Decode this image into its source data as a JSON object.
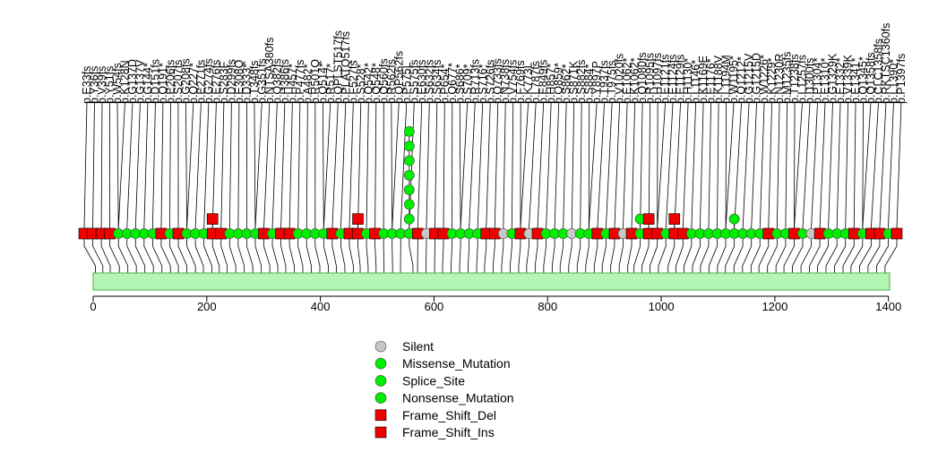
{
  "chart_data": {
    "type": "lollipop",
    "protein_length": 1402,
    "x_axis": {
      "ticks": [
        0,
        200,
        400,
        600,
        800,
        1000,
        1200,
        1400
      ]
    },
    "colors": {
      "Silent": "#c8c8c8",
      "Missense_Mutation": "#00ee00",
      "Splice_Site": "#00ee00",
      "Nonsense_Mutation": "#00ee00",
      "Frame_Shift_Del": "#ee0000",
      "Frame_Shift_Ins": "#ee0000",
      "domain": "#b3f5b3",
      "domain_border": "#4cae4c"
    },
    "legend": [
      {
        "label": "Silent",
        "shape": "circle",
        "class": "Silent"
      },
      {
        "label": "Missense_Mutation",
        "shape": "circle",
        "class": "Missense_Mutation"
      },
      {
        "label": "Splice_Site",
        "shape": "circle",
        "class": "Splice_Site"
      },
      {
        "label": "Nonsense_Mutation",
        "shape": "circle",
        "class": "Nonsense_Mutation"
      },
      {
        "label": "Frame_Shift_Del",
        "shape": "square",
        "class": "Frame_Shift_Del"
      },
      {
        "label": "Frame_Shift_Ins",
        "shape": "square",
        "class": "Frame_Shift_Ins"
      }
    ],
    "mutation_labels": [
      "p.E33fs",
      "p.Y36fs",
      "p.V39fs",
      "p.Y51fs",
      "p.W54fs",
      "p.K128N",
      "p.G137D",
      "p.G137V",
      "p.G144*",
      "p.D151fs",
      "p.Q191*",
      "p.E206fs",
      "p.S207fs",
      "p.G208fs",
      "p.Q227*",
      "p.E271fs",
      "p.G274fs",
      "p.E276fs",
      "p.S283F",
      "p.D299fs",
      "p.E308Q",
      "p.D333*",
      "p.T348fs",
      "p.G351fs",
      "p.NTSA380fs",
      "p.Q382fs",
      "p.H386fs",
      "p.H457*",
      "p.P477fs",
      "p.A482*",
      "p.R501Q",
      "p.Q514*",
      "p.R517*",
      "p.QPLST517fs",
      "p.PLATQ517fs",
      "p.F527fs",
      "p.S528*",
      "p.Q542*",
      "p.Q548*",
      "p.Q560fs",
      "p.R562fs",
      "p.QP562fs",
      "p.P575L",
      "p.S575fs",
      "p.E630fs",
      "p.S632fs",
      "p.S634fs",
      "p.P654*",
      "p.Q677*",
      "p.S686*",
      "p.S709*",
      "p.R713fs",
      "p.S716*",
      "p.S726fs",
      "p.Q733fs",
      "p.N738fs",
      "p.V754fs",
      "p.F769fs",
      "p.K773L",
      "p.L787fs",
      "p.E849fs",
      "p.H857*",
      "p.Q859*",
      "p.S862*",
      "p.S871K",
      "p.S882fs",
      "p.S884*",
      "p.Y897P",
      "p.T937fs",
      "p.T975fs",
      "p.V1020fs",
      "p.E1062*",
      "p.K1062*",
      "p.Q1080fs",
      "p.R1095fs",
      "p.H1097fs",
      "p.E1121fs",
      "p.E1124fs",
      "p.E1129fs",
      "p.H1130*",
      "p.L1146*",
      "p.K1169E",
      "p.E1176*",
      "p.K1188V",
      "p.L1194M",
      "p.W1195*",
      "p.Q1212*",
      "p.G1215V",
      "p.G1215D",
      "p.W1226*",
      "p.K1229*",
      "p.N1230R",
      "p.M1235fs",
      "p.T1238fs",
      "p.L1257fs",
      "p.I1300fs",
      "p.P1304*",
      "p.E1310*",
      "p.G1329K",
      "p.E1332*",
      "p.V1339K",
      "p.E1341*",
      "p.Q1345*",
      "p.Q1358fs",
      "p.CLC1358fs",
      "p.RKTSC1360fs",
      "p.L1390*",
      "p.P1397fs"
    ],
    "mutations": [
      {
        "pos": 4,
        "type": "Frame_Shift_Del",
        "count": 1
      },
      {
        "pos": 17,
        "type": "Frame_Shift_Del",
        "count": 1
      },
      {
        "pos": 30,
        "type": "Frame_Shift_Del",
        "count": 1
      },
      {
        "pos": 46,
        "type": "Frame_Shift_Del",
        "count": 1
      },
      {
        "pos": 61,
        "type": "Missense_Mutation",
        "count": 1
      },
      {
        "pos": 76,
        "type": "Missense_Mutation",
        "count": 1
      },
      {
        "pos": 91,
        "type": "Missense_Mutation",
        "count": 1
      },
      {
        "pos": 106,
        "type": "Missense_Mutation",
        "count": 1
      },
      {
        "pos": 121,
        "type": "Missense_Mutation",
        "count": 1
      },
      {
        "pos": 136,
        "type": "Frame_Shift_Del",
        "count": 1
      },
      {
        "pos": 150,
        "type": "Missense_Mutation",
        "count": 1
      },
      {
        "pos": 165,
        "type": "Frame_Shift_Del",
        "count": 1
      },
      {
        "pos": 180,
        "type": "Missense_Mutation",
        "count": 1
      },
      {
        "pos": 194,
        "type": "Missense_Mutation",
        "count": 1
      },
      {
        "pos": 209,
        "type": "Missense_Mutation",
        "count": 1
      },
      {
        "pos": 222,
        "type": "Frame_Shift_Del",
        "count": 2
      },
      {
        "pos": 236,
        "type": "Frame_Shift_Del",
        "count": 1
      },
      {
        "pos": 251,
        "type": "Missense_Mutation",
        "count": 1
      },
      {
        "pos": 266,
        "type": "Missense_Mutation",
        "count": 1
      },
      {
        "pos": 281,
        "type": "Missense_Mutation",
        "count": 1
      },
      {
        "pos": 296,
        "type": "Missense_Mutation",
        "count": 1
      },
      {
        "pos": 311,
        "type": "Frame_Shift_Del",
        "count": 1
      },
      {
        "pos": 325,
        "type": "Missense_Mutation",
        "count": 1
      },
      {
        "pos": 339,
        "type": "Frame_Shift_Del",
        "count": 1
      },
      {
        "pos": 354,
        "type": "Frame_Shift_Del",
        "count": 1
      },
      {
        "pos": 369,
        "type": "Missense_Mutation",
        "count": 1
      },
      {
        "pos": 384,
        "type": "Missense_Mutation",
        "count": 1
      },
      {
        "pos": 399,
        "type": "Missense_Mutation",
        "count": 1
      },
      {
        "pos": 414,
        "type": "Missense_Mutation",
        "count": 1
      },
      {
        "pos": 428,
        "type": "Frame_Shift_Del",
        "count": 1
      },
      {
        "pos": 443,
        "type": "Missense_Mutation",
        "count": 1
      },
      {
        "pos": 458,
        "type": "Frame_Shift_Del",
        "count": 1
      },
      {
        "pos": 470,
        "type": "Frame_Shift_Del",
        "count": 2
      },
      {
        "pos": 484,
        "type": "Missense_Mutation",
        "count": 1
      },
      {
        "pos": 498,
        "type": "Frame_Shift_Del",
        "count": 1
      },
      {
        "pos": 512,
        "type": "Missense_Mutation",
        "count": 1
      },
      {
        "pos": 527,
        "type": "Missense_Mutation",
        "count": 1
      },
      {
        "pos": 541,
        "type": "Missense_Mutation",
        "count": 1
      },
      {
        "pos": 563,
        "type": "Missense_Mutation",
        "count": 8
      },
      {
        "pos": 571,
        "type": "Frame_Shift_Del",
        "count": 1
      },
      {
        "pos": 586,
        "type": "Silent",
        "count": 1
      },
      {
        "pos": 601,
        "type": "Frame_Shift_Del",
        "count": 1
      },
      {
        "pos": 615,
        "type": "Frame_Shift_Del",
        "count": 1
      },
      {
        "pos": 630,
        "type": "Missense_Mutation",
        "count": 1
      },
      {
        "pos": 645,
        "type": "Missense_Mutation",
        "count": 1
      },
      {
        "pos": 660,
        "type": "Missense_Mutation",
        "count": 1
      },
      {
        "pos": 675,
        "type": "Missense_Mutation",
        "count": 1
      },
      {
        "pos": 689,
        "type": "Frame_Shift_Del",
        "count": 1
      },
      {
        "pos": 704,
        "type": "Frame_Shift_Del",
        "count": 1
      },
      {
        "pos": 719,
        "type": "Silent",
        "count": 1
      },
      {
        "pos": 734,
        "type": "Missense_Mutation",
        "count": 1
      },
      {
        "pos": 749,
        "type": "Frame_Shift_Del",
        "count": 1
      },
      {
        "pos": 763,
        "type": "Silent",
        "count": 1
      },
      {
        "pos": 778,
        "type": "Frame_Shift_Del",
        "count": 1
      },
      {
        "pos": 793,
        "type": "Missense_Mutation",
        "count": 1
      },
      {
        "pos": 808,
        "type": "Missense_Mutation",
        "count": 1
      },
      {
        "pos": 822,
        "type": "Missense_Mutation",
        "count": 1
      },
      {
        "pos": 837,
        "type": "Silent",
        "count": 1
      },
      {
        "pos": 852,
        "type": "Missense_Mutation",
        "count": 1
      },
      {
        "pos": 867,
        "type": "Missense_Mutation",
        "count": 1
      },
      {
        "pos": 882,
        "type": "Frame_Shift_Del",
        "count": 1
      },
      {
        "pos": 896,
        "type": "Missense_Mutation",
        "count": 1
      },
      {
        "pos": 911,
        "type": "Frame_Shift_Del",
        "count": 1
      },
      {
        "pos": 926,
        "type": "Silent",
        "count": 1
      },
      {
        "pos": 941,
        "type": "Frame_Shift_Del",
        "count": 1
      },
      {
        "pos": 952,
        "type": "Missense_Mutation",
        "count": 2
      },
      {
        "pos": 966,
        "type": "Frame_Shift_Del",
        "count": 2
      },
      {
        "pos": 980,
        "type": "Frame_Shift_Del",
        "count": 1
      },
      {
        "pos": 995,
        "type": "Missense_Mutation",
        "count": 1
      },
      {
        "pos": 1012,
        "type": "Frame_Shift_Del",
        "count": 2
      },
      {
        "pos": 1026,
        "type": "Frame_Shift_Del",
        "count": 1
      },
      {
        "pos": 1040,
        "type": "Missense_Mutation",
        "count": 1
      },
      {
        "pos": 1055,
        "type": "Missense_Mutation",
        "count": 1
      },
      {
        "pos": 1069,
        "type": "Missense_Mutation",
        "count": 1
      },
      {
        "pos": 1084,
        "type": "Missense_Mutation",
        "count": 1
      },
      {
        "pos": 1099,
        "type": "Missense_Mutation",
        "count": 1
      },
      {
        "pos": 1113,
        "type": "Missense_Mutation",
        "count": 2
      },
      {
        "pos": 1128,
        "type": "Missense_Mutation",
        "count": 1
      },
      {
        "pos": 1143,
        "type": "Missense_Mutation",
        "count": 1
      },
      {
        "pos": 1158,
        "type": "Missense_Mutation",
        "count": 1
      },
      {
        "pos": 1172,
        "type": "Frame_Shift_Del",
        "count": 1
      },
      {
        "pos": 1187,
        "type": "Missense_Mutation",
        "count": 1
      },
      {
        "pos": 1202,
        "type": "Missense_Mutation",
        "count": 1
      },
      {
        "pos": 1216,
        "type": "Frame_Shift_Del",
        "count": 1
      },
      {
        "pos": 1231,
        "type": "Missense_Mutation",
        "count": 1
      },
      {
        "pos": 1246,
        "type": "Silent",
        "count": 1
      },
      {
        "pos": 1261,
        "type": "Frame_Shift_Del",
        "count": 1
      },
      {
        "pos": 1275,
        "type": "Missense_Mutation",
        "count": 1
      },
      {
        "pos": 1290,
        "type": "Missense_Mutation",
        "count": 1
      },
      {
        "pos": 1305,
        "type": "Missense_Mutation",
        "count": 1
      },
      {
        "pos": 1320,
        "type": "Frame_Shift_Del",
        "count": 1
      },
      {
        "pos": 1334,
        "type": "Missense_Mutation",
        "count": 1
      },
      {
        "pos": 1349,
        "type": "Frame_Shift_Del",
        "count": 1
      },
      {
        "pos": 1364,
        "type": "Frame_Shift_Del",
        "count": 1
      },
      {
        "pos": 1379,
        "type": "Missense_Mutation",
        "count": 1
      },
      {
        "pos": 1394,
        "type": "Frame_Shift_Del",
        "count": 1
      }
    ]
  }
}
